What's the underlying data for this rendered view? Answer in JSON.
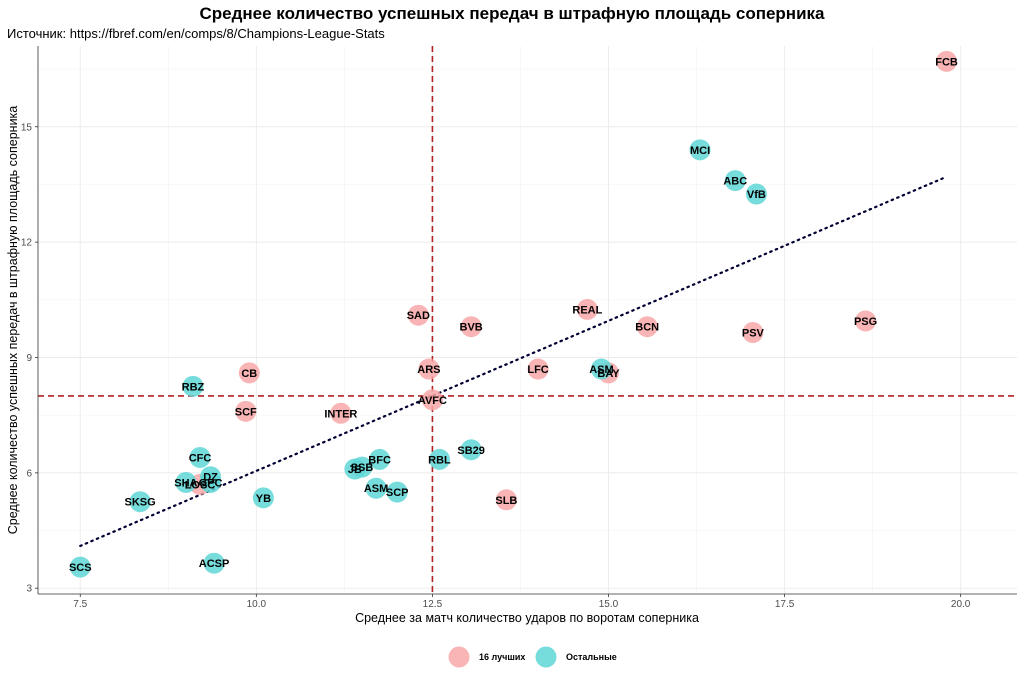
{
  "chart_data": {
    "type": "scatter",
    "title": "Среднее количество успешных передач в штрафную площадь соперника",
    "subtitle": "Источник: https://fbref.com/en/comps/8/Champions-League-Stats",
    "xlabel": "Среднее за матч количество ударов по воротам соперника",
    "ylabel": "Среднее количество успешных передач в штрафную площадь соперника",
    "xlim": [
      6.9,
      20.8
    ],
    "ylim": [
      2.85,
      17.1
    ],
    "x_ticks": [
      "7.5",
      "10.0",
      "12.5",
      "15.0",
      "17.5",
      "20.0"
    ],
    "y_ticks": [
      "3",
      "6",
      "9",
      "12",
      "15"
    ],
    "x_tick_values": [
      7.5,
      10.0,
      12.5,
      15.0,
      17.5,
      20.0
    ],
    "y_tick_values": [
      3,
      6,
      9,
      12,
      15
    ],
    "grid": true,
    "reference_lines": {
      "x": 12.5,
      "y": 8.0,
      "color": "#b22222",
      "style": "dashed"
    },
    "trend_line": {
      "x": [
        7.5,
        19.8
      ],
      "y": [
        4.1,
        13.7
      ],
      "color": "#000033",
      "style": "dotted"
    },
    "legend": {
      "position": "bottom",
      "entries": [
        {
          "label": "16 лучших",
          "color": "#f8a8a8"
        },
        {
          "label": "Остальные",
          "color": "#5fd6d6"
        }
      ]
    },
    "series": [
      {
        "name": "16 лучших",
        "color": "#f8a8a8",
        "points": [
          {
            "label": "FCB",
            "x": 19.8,
            "y": 16.7
          },
          {
            "label": "PSG",
            "x": 18.65,
            "y": 9.95
          },
          {
            "label": "PSV",
            "x": 17.05,
            "y": 9.65
          },
          {
            "label": "BCN",
            "x": 15.55,
            "y": 9.8
          },
          {
            "label": "REAL",
            "x": 14.7,
            "y": 10.25
          },
          {
            "label": "BAY",
            "x": 15.0,
            "y": 8.6
          },
          {
            "label": "LFC",
            "x": 14.0,
            "y": 8.7
          },
          {
            "label": "BVB",
            "x": 13.05,
            "y": 9.8
          },
          {
            "label": "SAD",
            "x": 12.3,
            "y": 10.1
          },
          {
            "label": "ARS",
            "x": 12.45,
            "y": 8.7
          },
          {
            "label": "AVFC",
            "x": 12.5,
            "y": 7.9
          },
          {
            "label": "INTER",
            "x": 11.2,
            "y": 7.55
          },
          {
            "label": "SCF",
            "x": 9.85,
            "y": 7.6
          },
          {
            "label": "CB",
            "x": 9.9,
            "y": 8.6
          },
          {
            "label": "LOSC",
            "x": 9.2,
            "y": 5.7
          },
          {
            "label": "SLB",
            "x": 13.55,
            "y": 5.3
          }
        ]
      },
      {
        "name": "Остальные",
        "color": "#5fd6d6",
        "points": [
          {
            "label": "MCI",
            "x": 16.3,
            "y": 14.4
          },
          {
            "label": "ABC",
            "x": 16.8,
            "y": 13.6
          },
          {
            "label": "VfB",
            "x": 17.1,
            "y": 13.25
          },
          {
            "label": "ASM",
            "x": 14.9,
            "y": 8.7
          },
          {
            "label": "RBZ",
            "x": 9.1,
            "y": 8.25
          },
          {
            "label": "CFC",
            "x": 9.2,
            "y": 6.4
          },
          {
            "label": "DZ",
            "x": 9.35,
            "y": 5.9
          },
          {
            "label": "GPC",
            "x": 9.35,
            "y": 5.75
          },
          {
            "label": "SHA",
            "x": 9.0,
            "y": 5.75
          },
          {
            "label": "SKSG",
            "x": 8.35,
            "y": 5.25
          },
          {
            "label": "SCS",
            "x": 7.5,
            "y": 3.55
          },
          {
            "label": "ACSP",
            "x": 9.4,
            "y": 3.65
          },
          {
            "label": "YB",
            "x": 10.1,
            "y": 5.35
          },
          {
            "label": "JB",
            "x": 11.4,
            "y": 6.1
          },
          {
            "label": "SSB",
            "x": 11.5,
            "y": 6.15
          },
          {
            "label": "BFC",
            "x": 11.75,
            "y": 6.35
          },
          {
            "label": "ASM",
            "x": 11.7,
            "y": 5.6
          },
          {
            "label": "SCP",
            "x": 12.0,
            "y": 5.5
          },
          {
            "label": "RBL",
            "x": 12.6,
            "y": 6.35
          },
          {
            "label": "SB29",
            "x": 13.05,
            "y": 6.6
          }
        ]
      }
    ]
  }
}
